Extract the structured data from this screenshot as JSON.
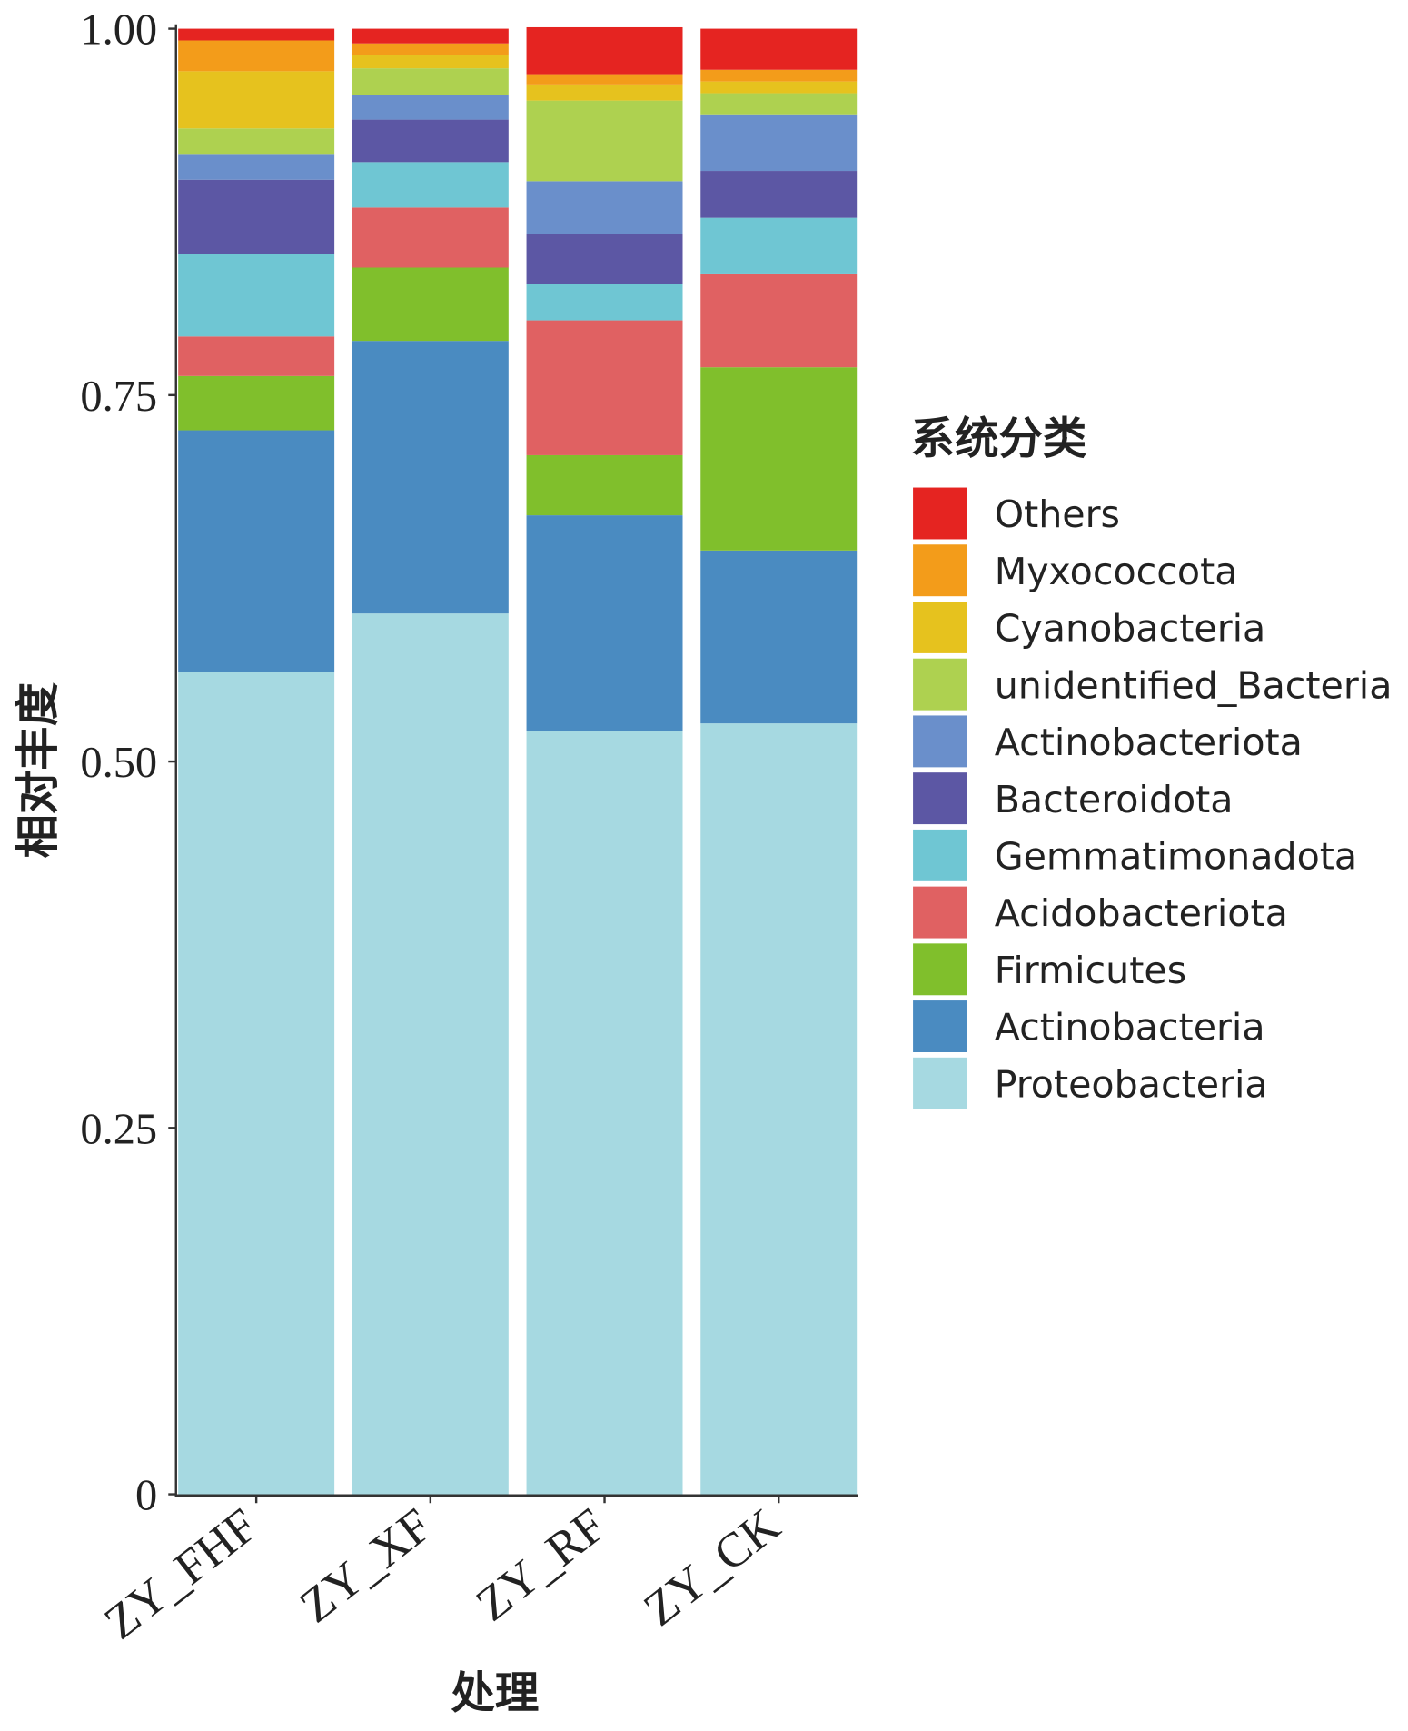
{
  "chart_data": {
    "type": "bar",
    "stacked": true,
    "title": "",
    "xlabel": "处理",
    "ylabel": "相对丰度",
    "ylim": [
      0,
      1
    ],
    "yticks": [
      "0",
      "0.25",
      "0.50",
      "0.75",
      "1.00"
    ],
    "ytick_values": [
      0,
      0.25,
      0.5,
      0.75,
      1.0
    ],
    "categories": [
      "ZY_FHF",
      "ZY_XF",
      "ZY_RF",
      "ZY_CK"
    ],
    "legend_title": "系统分类",
    "legend_position": "right",
    "series": [
      {
        "name": "Proteobacteria",
        "color": "#a6d9e1",
        "values": [
          0.561,
          0.601,
          0.521,
          0.526
        ]
      },
      {
        "name": "Actinobacteria",
        "color": "#4a8bc1",
        "values": [
          0.165,
          0.186,
          0.147,
          0.118
        ]
      },
      {
        "name": "Firmicutes",
        "color": "#80bf2c",
        "values": [
          0.037,
          0.05,
          0.041,
          0.125
        ]
      },
      {
        "name": "Acidobacteriota",
        "color": "#e06162",
        "values": [
          0.027,
          0.041,
          0.092,
          0.064
        ]
      },
      {
        "name": "Gemmatimonadota",
        "color": "#6fc6d3",
        "values": [
          0.056,
          0.031,
          0.025,
          0.038
        ]
      },
      {
        "name": "Bacteroidota",
        "color": "#5c57a4",
        "values": [
          0.051,
          0.029,
          0.034,
          0.032
        ]
      },
      {
        "name": "Actinobacteriota",
        "color": "#6a8fcb",
        "values": [
          0.017,
          0.017,
          0.036,
          0.038
        ]
      },
      {
        "name": "unidentified_Bacteria",
        "color": "#aed150",
        "values": [
          0.018,
          0.018,
          0.055,
          0.015
        ]
      },
      {
        "name": "Cyanobacteria",
        "color": "#e6c21e",
        "values": [
          0.039,
          0.009,
          0.011,
          0.008
        ]
      },
      {
        "name": "Myxococcota",
        "color": "#f39c1a",
        "values": [
          0.021,
          0.008,
          0.007,
          0.008
        ]
      },
      {
        "name": "Others",
        "color": "#e52421",
        "values": [
          0.008,
          0.01,
          0.032,
          0.028
        ]
      }
    ]
  }
}
